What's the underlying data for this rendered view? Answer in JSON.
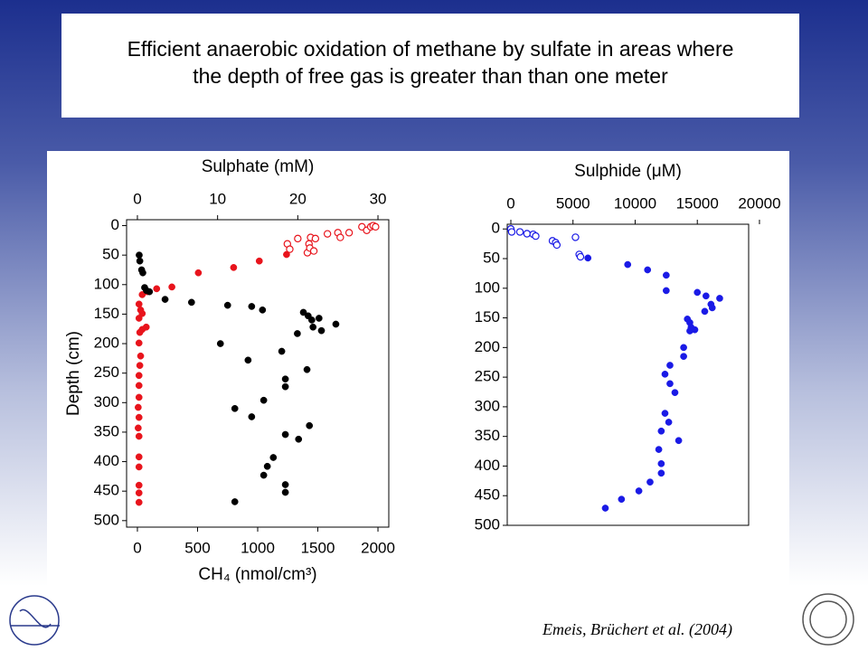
{
  "slide_title": [
    "Efficient anaerobic oxidation of methane by sulfate in areas where",
    "the depth of free gas is greater than than one meter"
  ],
  "citation": "Emeis, Brüchert et al. (2004)",
  "chart_data": [
    {
      "type": "scatter",
      "x2label": "Sulphate (mM)",
      "xlabel": "CH₄ (nmol/cm³)",
      "ylabel": "Depth (cm)",
      "xlim": [
        -90,
        2090
      ],
      "xticks": [
        0,
        500,
        1000,
        1500,
        2000
      ],
      "x2lim": [
        -1.35,
        31.35
      ],
      "x2ticks": [
        0,
        10,
        20,
        30
      ],
      "ylim": [
        -10,
        511
      ],
      "yticks": [
        0,
        50,
        100,
        150,
        200,
        250,
        300,
        350,
        400,
        450,
        500
      ],
      "y_inverted": true,
      "series": [
        {
          "color": "#e8141c",
          "marker": "open",
          "xaxis": "x2",
          "x": [
            18.7,
            19.0,
            20.0,
            21.6,
            21.4,
            21.2,
            22.2,
            23.7,
            25.0,
            25.3,
            26.4,
            28.0,
            28.6,
            29.1,
            29.4,
            29.7,
            21.5,
            22.0
          ],
          "y": [
            31,
            40,
            22,
            20,
            31,
            46,
            22,
            14,
            12,
            20,
            12,
            2,
            8,
            2,
            0,
            2,
            38,
            43
          ]
        },
        {
          "color": "#e8141c",
          "marker": "filled",
          "xaxis": "x2",
          "x": [
            18.6,
            15.2,
            12.0,
            7.6,
            4.3,
            2.4,
            1.2,
            0.6,
            0.2,
            0.4,
            0.6,
            0.2,
            1.1,
            0.6,
            0.3,
            0.2,
            0.4,
            0.3,
            0.2,
            0.2,
            0.2,
            0.1,
            0.2,
            0.1,
            0.2,
            0.2,
            0.2,
            0.2,
            0.2,
            0.2
          ],
          "y": [
            49,
            60,
            71,
            80,
            104,
            107,
            112,
            117,
            133,
            143,
            149,
            157,
            172,
            176,
            181,
            199,
            221,
            237,
            254,
            271,
            291,
            308,
            325,
            343,
            357,
            392,
            409,
            440,
            453,
            469
          ]
        },
        {
          "color": "#000000",
          "marker": "filled",
          "xaxis": "x",
          "x": [
            15,
            20,
            35,
            45,
            60,
            75,
            100,
            230,
            450,
            750,
            950,
            1040,
            1380,
            1420,
            1450,
            1510,
            1460,
            1530,
            1650,
            1330,
            690,
            1200,
            920,
            1410,
            1230,
            1230,
            1050,
            810,
            950,
            1430,
            1230,
            1340,
            1130,
            1080,
            1050,
            1230,
            1230,
            810
          ],
          "y": [
            50,
            60,
            75,
            80,
            105,
            110,
            112,
            125,
            130,
            135,
            137,
            143,
            147,
            153,
            160,
            157,
            172,
            178,
            167,
            183,
            200,
            213,
            228,
            244,
            260,
            273,
            296,
            310,
            324,
            339,
            354,
            362,
            393,
            408,
            423,
            439,
            452,
            468
          ]
        }
      ]
    },
    {
      "type": "scatter",
      "x2label": "Sulphide (μM)",
      "x2lim": [
        -290,
        19130
      ],
      "x2ticks": [
        0,
        5000,
        10000,
        15000,
        20000
      ],
      "ylim": [
        -8,
        500
      ],
      "yticks": [
        0,
        50,
        100,
        150,
        200,
        250,
        300,
        350,
        400,
        450,
        500
      ],
      "y_inverted": true,
      "series": [
        {
          "color": "#1a1ae6",
          "marker": "open",
          "xaxis": "x2",
          "x": [
            0,
            70,
            730,
            1300,
            1800,
            2000,
            3350,
            3600,
            3700,
            5200,
            5500,
            5600
          ],
          "y": [
            0,
            5,
            5,
            8,
            9,
            12,
            20,
            23,
            27,
            14,
            43,
            47
          ]
        },
        {
          "color": "#1a1ae6",
          "marker": "filled",
          "xaxis": "x2",
          "x": [
            6200,
            9400,
            11000,
            12500,
            12500,
            15000,
            15700,
            16800,
            16100,
            16200,
            15600,
            14200,
            14400,
            14500,
            14400,
            14800,
            13900,
            13900,
            12800,
            12400,
            12800,
            13200,
            12400,
            12700,
            12100,
            13500,
            11900,
            12100,
            12100,
            11200,
            10300,
            8900,
            7600
          ],
          "y": [
            49,
            60,
            69,
            78,
            104,
            107,
            113,
            117,
            127,
            133,
            139,
            152,
            158,
            166,
            172,
            170,
            200,
            215,
            230,
            245,
            261,
            276,
            311,
            326,
            341,
            357,
            372,
            396,
            412,
            427,
            442,
            456,
            471
          ]
        }
      ]
    }
  ]
}
